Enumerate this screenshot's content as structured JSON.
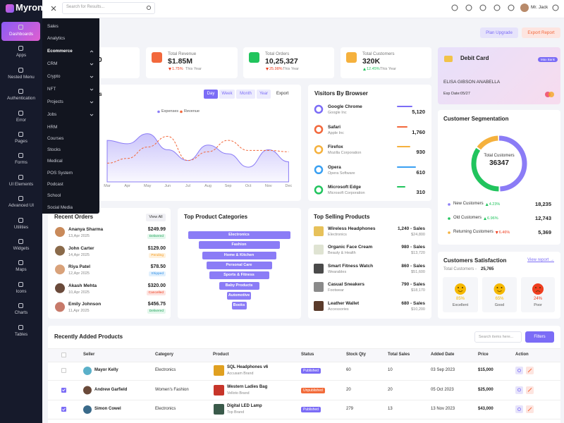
{
  "brand": "Myron",
  "search_placeholder": "Search for Results...",
  "user": "Mr. Jack",
  "sidebar": [
    "Dashboards",
    "Apps",
    "Nested Menu",
    "Authentication",
    "Error",
    "Pages",
    "Forms",
    "UI Elements",
    "Advanced UI",
    "Utilities",
    "Widgets",
    "Maps",
    "Icons",
    "Charts",
    "Tables"
  ],
  "sidebar_active": 0,
  "submenu": [
    {
      "label": "Sales"
    },
    {
      "label": "Analytics"
    },
    {
      "label": "Ecommerce",
      "open": true
    },
    {
      "label": "CRM",
      "chevron": true
    },
    {
      "label": "Crypto",
      "chevron": true
    },
    {
      "label": "NFT",
      "chevron": true
    },
    {
      "label": "Projects",
      "chevron": true
    },
    {
      "label": "Jobs",
      "chevron": true
    },
    {
      "label": "HRM"
    },
    {
      "label": "Courses"
    },
    {
      "label": "Stocks"
    },
    {
      "label": "Medical"
    },
    {
      "label": "POS System"
    },
    {
      "label": "Podcast"
    },
    {
      "label": "School"
    },
    {
      "label": "Social Media"
    }
  ],
  "page_title_fragment": "ce",
  "buttons": [
    {
      "label": "Plan Upgrade",
      "color": "#7b6cf6",
      "bg": "#e6e3fb"
    },
    {
      "label": "Export Report",
      "color": "#f2683c",
      "bg": "#fde5e0"
    }
  ],
  "stats": [
    {
      "value": "00"
    },
    {
      "label": "Total Revenue",
      "value": "$1.85M",
      "change": "1.75%",
      "trend": "down",
      "period": "This Year",
      "color": "#f2683c"
    },
    {
      "label": "Total Orders",
      "value": "10,25,327",
      "change": "25.98%",
      "trend": "down",
      "period": "This Year",
      "color": "#21c45d"
    },
    {
      "label": "Total Customers",
      "value": "320K",
      "change": "12.45%",
      "trend": "up",
      "period": "This Year",
      "color": "#f5b13d"
    }
  ],
  "debit_card": {
    "title": "Debit Card",
    "bank": "Max Bank",
    "holder": "ELISA GIBSON ANABELLA",
    "expiry": "Exp Date:05/27"
  },
  "sales_chart": {
    "title_fragment": "s",
    "tabs": [
      "Day",
      "Week",
      "Month",
      "Year"
    ],
    "active_tab": 0,
    "export": "Export",
    "categories": [
      "Mar",
      "Apr",
      "May",
      "Jun",
      "Jul",
      "Aug",
      "Sep",
      "Oct",
      "Nov",
      "Dec"
    ],
    "ylim": [
      0,
      100
    ],
    "series": [
      {
        "name": "Expenses",
        "color": "#8b7cf6",
        "values": [
          62,
          57,
          72,
          48,
          32,
          55,
          42,
          22,
          48,
          30
        ]
      },
      {
        "name": "Revenue",
        "color": "#f2683c",
        "values": [
          28,
          35,
          52,
          68,
          32,
          45,
          62,
          47,
          47,
          45
        ]
      }
    ]
  },
  "browsers": {
    "title": "Visitors By Browser",
    "items": [
      {
        "name": "Google Chrome",
        "company": "Google Inc",
        "visits": "5,120",
        "color": "#7b6cf6"
      },
      {
        "name": "Safari",
        "company": "Apple Inc",
        "visits": "1,760",
        "color": "#f2683c"
      },
      {
        "name": "Firefox",
        "company": "Mozilla Corporation",
        "visits": "930",
        "color": "#f5b13d"
      },
      {
        "name": "Opera",
        "company": "Opera Software",
        "visits": "610",
        "color": "#3aa0f2"
      },
      {
        "name": "Microsoft Edge",
        "company": "Microsoft Corporation",
        "visits": "310",
        "color": "#21c45d"
      }
    ]
  },
  "segmentation": {
    "title": "Customer Segmentation",
    "center_label": "Total Customers",
    "total": 36347,
    "items": [
      {
        "name": "New Customers",
        "change": "4.23%",
        "trend": "up",
        "value": 18235,
        "label": "18,235",
        "color": "#8b7cf6"
      },
      {
        "name": "Old Customers",
        "change": "6.96%",
        "trend": "up",
        "value": 12743,
        "label": "12,743",
        "color": "#21c45d"
      },
      {
        "name": "Returning Customers",
        "change": "6.46%",
        "trend": "down",
        "value": 5369,
        "label": "5,369",
        "color": "#f5b13d"
      }
    ]
  },
  "recent_orders": {
    "title": "Recent Orders",
    "action": "View All",
    "items": [
      {
        "name": "Ananya Sharma",
        "date": "13,Apr 2025",
        "price": "$249.99",
        "status": "Delivered"
      },
      {
        "name": "John Carter",
        "date": "14,Apr 2025",
        "price": "$129.00",
        "status": "Pending"
      },
      {
        "name": "Riya Patel",
        "date": "12,Apr 2025",
        "price": "$78.50",
        "status": "Shipped"
      },
      {
        "name": "Akash Mehta",
        "date": "10,Apr 2025",
        "price": "$320.00",
        "status": "Cancelled"
      },
      {
        "name": "Emily Johnson",
        "date": "11,Apr 2025",
        "price": "$456.75",
        "status": "Delivered"
      }
    ]
  },
  "categories_funnel": {
    "title": "Top Product Categories",
    "items": [
      "Electronics",
      "Fashion",
      "Home & Kitchen",
      "Personal Care",
      "Sports & Fitness",
      "Baby Products",
      "Automotive",
      "Books"
    ]
  },
  "top_selling": {
    "title": "Top Selling Products",
    "items": [
      {
        "name": "Wireless Headphones",
        "category": "Electronics",
        "sales": "1,240 - Sales",
        "amount": "$24,800"
      },
      {
        "name": "Organic Face Cream",
        "category": "Beauty & Health",
        "sales": "980 - Sales",
        "amount": "$13,720"
      },
      {
        "name": "Smart Fitness Watch",
        "category": "Wearables",
        "sales": "860 - Sales",
        "amount": "$51,600"
      },
      {
        "name": "Casual Sneakers",
        "category": "Footwear",
        "sales": "790 - Sales",
        "amount": "$18,170"
      },
      {
        "name": "Leather Wallet",
        "category": "Accessories",
        "sales": "680 - Sales",
        "amount": "$10,200"
      }
    ]
  },
  "satisfaction": {
    "title": "Customers Satisfaction",
    "link": "View report →",
    "total_label": "Total Customers -",
    "total": "25,765",
    "items": [
      {
        "percent": "85%",
        "label": "Excellent",
        "color": "#f5b800"
      },
      {
        "percent": "65%",
        "label": "Good",
        "color": "#f5b800"
      },
      {
        "percent": "24%",
        "label": "Poor",
        "color": "#ef3e1f"
      }
    ]
  },
  "products_table": {
    "title": "Recently Added Products",
    "search_placeholder": "Search items here...",
    "filter": "Filters",
    "columns": [
      "Seller",
      "Category",
      "Product",
      "Status",
      "Stock Qty",
      "Total Sales",
      "Added Date",
      "Price",
      "Action"
    ],
    "rows": [
      {
        "checked": false,
        "seller": "Mayor Kelly",
        "category": "Electronics",
        "product": "SQL Headphones v6",
        "brand": "Accusam Brand",
        "status": "Published",
        "stock": "60",
        "sales": "10",
        "date": "03 Sep 2023",
        "price": "$15,000"
      },
      {
        "checked": true,
        "seller": "Andrew Garfield",
        "category": "Women's Fashion",
        "product": "Western Ladies Bag",
        "brand": "Velloto Brand",
        "status": "Unpublished",
        "stock": "20",
        "sales": "20",
        "date": "05 Oct 2023",
        "price": "$25,000"
      },
      {
        "checked": true,
        "seller": "Simon Cowel",
        "category": "Electronics",
        "product": "Digital LED Lamp",
        "brand": "Top Brand",
        "status": "Published",
        "stock": "279",
        "sales": "13",
        "date": "13 Nov 2023",
        "price": "$43,000"
      }
    ]
  }
}
